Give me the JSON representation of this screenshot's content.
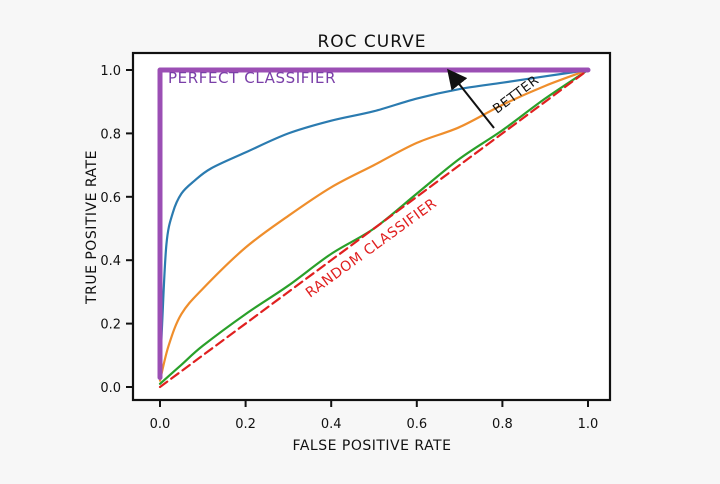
{
  "chart_data": {
    "type": "line",
    "title": "ROC CURVE",
    "xlabel": "FALSE POSITIVE RATE",
    "ylabel": "TRUE POSITIVE RATE",
    "xlim": [
      0,
      1
    ],
    "ylim": [
      0,
      1
    ],
    "xticks": [
      "0.0",
      "0.2",
      "0.4",
      "0.6",
      "0.8",
      "1.0"
    ],
    "yticks": [
      "0.0",
      "0.2",
      "0.4",
      "0.6",
      "0.8",
      "1.0"
    ],
    "grid": false,
    "series": [
      {
        "label": "PERFECT CLASSIFIER",
        "color": "#9b4fb4",
        "style": "solid-thick",
        "x": [
          0,
          0,
          1
        ],
        "y": [
          0.03,
          1.0,
          1.0
        ]
      },
      {
        "label": "",
        "color": "#2b7bb0",
        "style": "solid",
        "x": [
          0,
          0.005,
          0.015,
          0.03,
          0.05,
          0.08,
          0.12,
          0.2,
          0.3,
          0.4,
          0.5,
          0.6,
          0.7,
          0.8,
          0.9,
          1.0
        ],
        "y": [
          0.03,
          0.2,
          0.45,
          0.55,
          0.61,
          0.65,
          0.69,
          0.74,
          0.8,
          0.84,
          0.87,
          0.91,
          0.94,
          0.96,
          0.98,
          1.0
        ]
      },
      {
        "label": "",
        "color": "#ef8e2c",
        "style": "solid",
        "x": [
          0,
          0.02,
          0.05,
          0.1,
          0.2,
          0.3,
          0.4,
          0.5,
          0.6,
          0.7,
          0.8,
          0.9,
          1.0
        ],
        "y": [
          0.02,
          0.13,
          0.23,
          0.31,
          0.44,
          0.54,
          0.63,
          0.7,
          0.77,
          0.82,
          0.89,
          0.95,
          1.0
        ]
      },
      {
        "label": "",
        "color": "#2aa02a",
        "style": "solid",
        "x": [
          0,
          0.05,
          0.1,
          0.2,
          0.3,
          0.4,
          0.5,
          0.6,
          0.7,
          0.8,
          0.9,
          1.0
        ],
        "y": [
          0.01,
          0.07,
          0.13,
          0.23,
          0.32,
          0.42,
          0.5,
          0.61,
          0.72,
          0.81,
          0.91,
          1.0
        ]
      },
      {
        "label": "RANDOM CLASSIFIER",
        "color": "#e02020",
        "style": "dashed",
        "x": [
          0,
          1
        ],
        "y": [
          0,
          1
        ]
      }
    ],
    "annotations": [
      {
        "text": "PERFECT CLASSIFIER",
        "color": "#7a3fa8"
      },
      {
        "text": "RANDOM CLASSIFIER",
        "color": "#e02020"
      },
      {
        "text": "BETTER",
        "color": "#111111",
        "arrow": "up-left"
      }
    ]
  }
}
